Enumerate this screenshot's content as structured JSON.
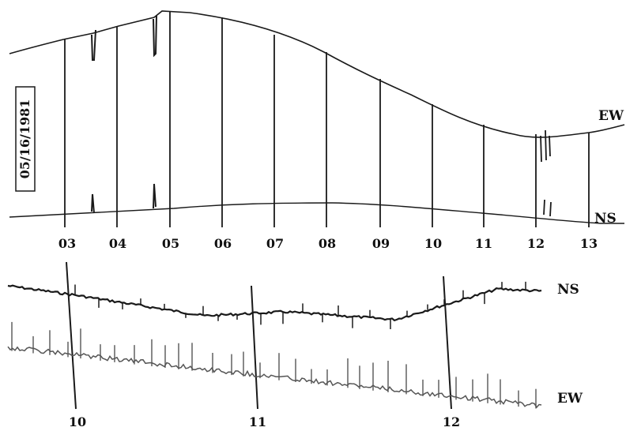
{
  "date_label": "05/16/1981",
  "top_panel": {
    "trace_labels": {
      "ew": "EW",
      "ns": "NS"
    },
    "hour_ticks": [
      "03",
      "04",
      "05",
      "06",
      "07",
      "08",
      "09",
      "10",
      "11",
      "12",
      "13"
    ]
  },
  "bottom_panel": {
    "trace_labels": {
      "ns": "NS",
      "ew": "EW"
    },
    "hour_ticks": [
      "10",
      "11",
      "12"
    ]
  },
  "colors": {
    "ink": "#1a1a1a",
    "paper": "#ffffff",
    "trace_gray": "#555555"
  }
}
